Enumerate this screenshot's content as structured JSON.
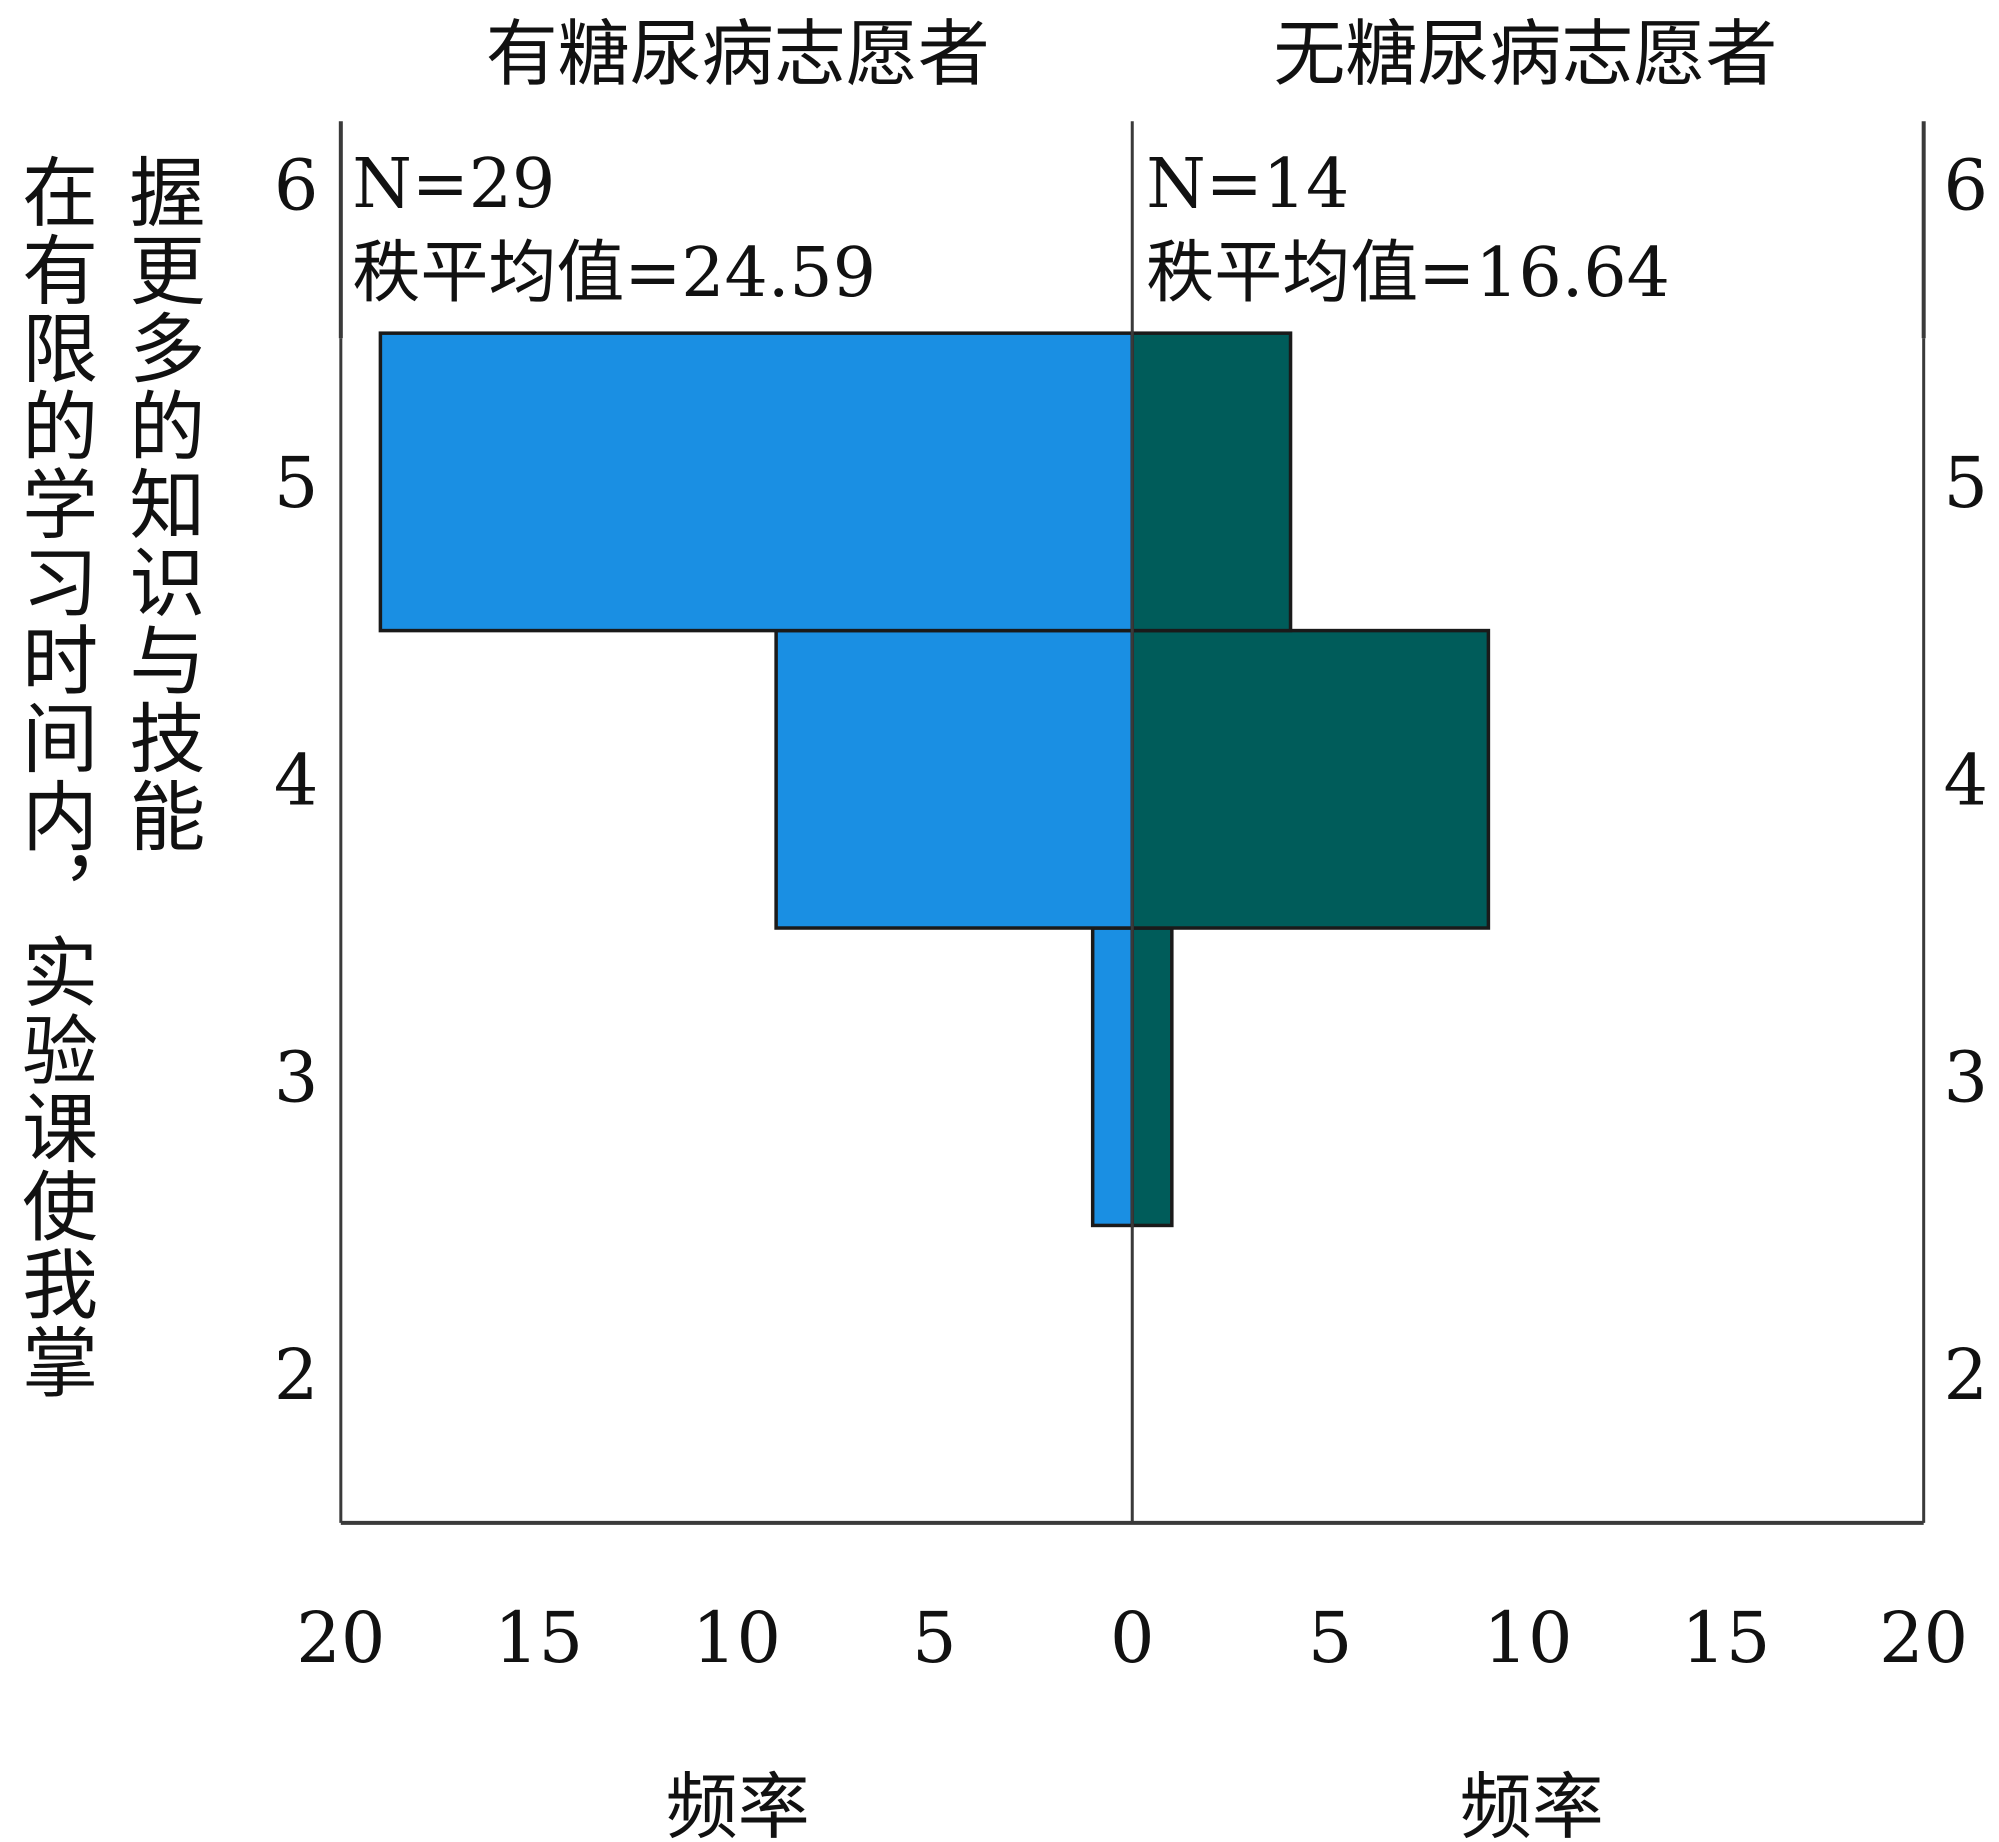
{
  "chart_data": {
    "type": "bar",
    "orientation": "horizontal-back-to-back",
    "ylabel_lines": [
      "在有限的学习时间内，实验课使我掌",
      "握更多的知识与技能"
    ],
    "categories": [
      2,
      3,
      4,
      5,
      6
    ],
    "panels": [
      {
        "title": "有糖尿病志愿者",
        "side": "left",
        "color": "#1a8fe3",
        "n_label": "N=29",
        "rank_mean_label": "秩平均值=24.59",
        "xlabel": "频率",
        "values": [
          0,
          1,
          9,
          19,
          0
        ]
      },
      {
        "title": "无糖尿病志愿者",
        "side": "right",
        "color": "#005c5a",
        "n_label": "N=14",
        "rank_mean_label": "秩平均值=16.64",
        "xlabel": "频率",
        "values": [
          0,
          1,
          9,
          4,
          0
        ]
      }
    ],
    "xlim": [
      0,
      20
    ],
    "xticks": [
      20,
      15,
      10,
      5,
      0,
      5,
      10,
      15,
      20
    ],
    "grid": false,
    "legend": "none"
  }
}
